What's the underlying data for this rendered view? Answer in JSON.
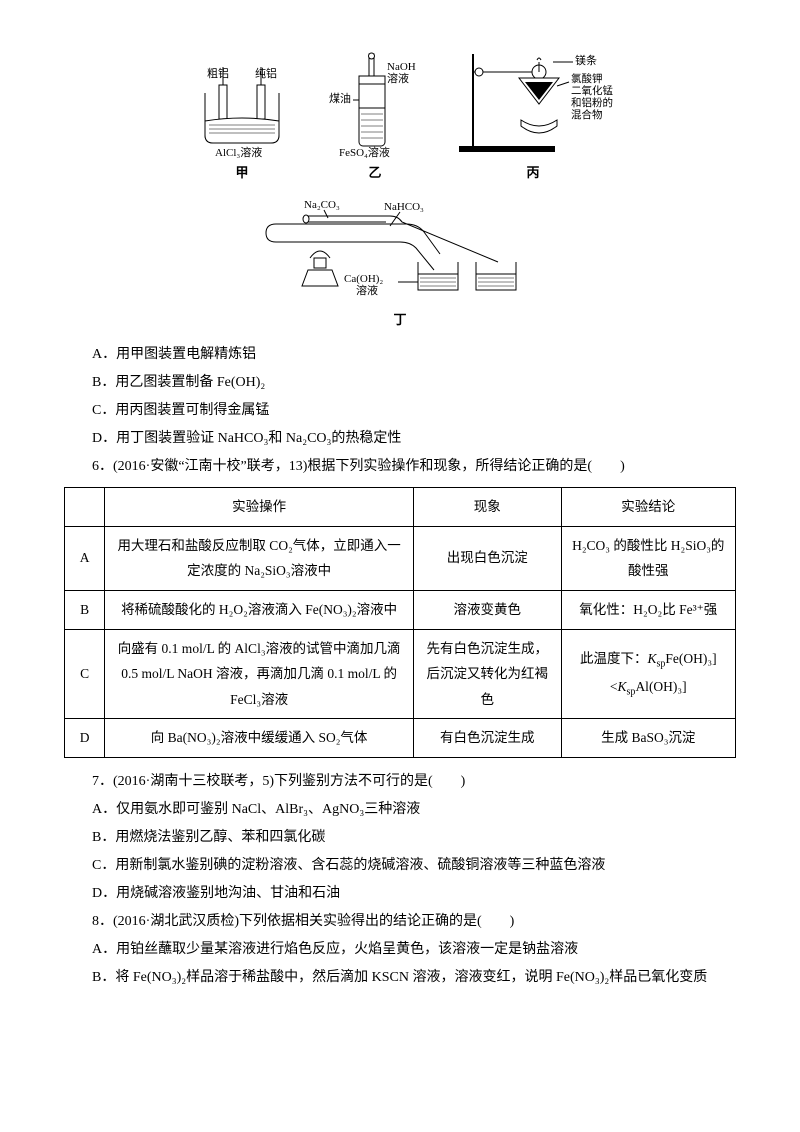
{
  "diagrams": {
    "jia": {
      "left": "粗铝",
      "right": "纯铝",
      "bottom": "AlCl₃溶液",
      "label": "甲"
    },
    "yi": {
      "top": "NaOH\n溶液",
      "mid": "煤油",
      "bottom": "FeSO₄溶液",
      "label": "乙"
    },
    "bing": {
      "a": "镁条",
      "b": "氯酸钾\n二氧化锰\n和铝粉的\n混合物",
      "label": "丙"
    },
    "ding": {
      "inner": "Na₂CO₃",
      "outer": "NaHCO₃",
      "sol": "Ca(OH)₂\n溶液",
      "label": "丁"
    }
  },
  "q5": {
    "A": "A．用甲图装置电解精炼铝",
    "B": "B．用乙图装置制备 Fe(OH)₂",
    "C": "C．用丙图装置可制得金属锰",
    "D": "D．用丁图装置验证 NaHCO₃和 Na₂CO₃的热稳定性"
  },
  "q6": {
    "stem": "6．(2016·安徽“江南十校”联考，13)根据下列实验操作和现象，所得结论正确的是(　　)",
    "headers": {
      "op": "实验操作",
      "ph": "现象",
      "res": "实验结论"
    },
    "rows": {
      "A": {
        "op": "用大理石和盐酸反应制取 CO₂气体，立即通入一定浓度的 Na₂SiO₃溶液中",
        "ph": "出现白色沉淀",
        "res": "H₂CO₃ 的酸性比 H₂SiO₃的酸性强"
      },
      "B": {
        "op": "将稀硫酸酸化的 H₂O₂溶液滴入 Fe(NO₃)₂溶液中",
        "ph": "溶液变黄色",
        "res": "氧化性：H₂O₂比 Fe³⁺强"
      },
      "C": {
        "op": "向盛有 0.1 mol/L 的 AlCl₃溶液的试管中滴加几滴 0.5 mol/L NaOH 溶液，再滴加几滴 0.1 mol/L 的 FeCl₃溶液",
        "ph": "先有白色沉淀生成，后沉淀又转化为红褐色",
        "res_html": "此温度下：<span class='ital'>K</span><sub>sp</sub>Fe(OH)₃]<br><<span class='ital'>K</span><sub>sp</sub>Al(OH)₃]"
      },
      "D": {
        "op": "向 Ba(NO₃)₂溶液中缓缓通入 SO₂气体",
        "ph": "有白色沉淀生成",
        "res": "生成 BaSO₃沉淀"
      }
    }
  },
  "q7": {
    "stem": "7．(2016·湖南十三校联考，5)下列鉴别方法不可行的是(　　)",
    "A": "A．仅用氨水即可鉴别 NaCl、AlBr₃、AgNO₃三种溶液",
    "B": "B．用燃烧法鉴别乙醇、苯和四氯化碳",
    "C": "C．用新制氯水鉴别碘的淀粉溶液、含石蕊的烧碱溶液、硫酸铜溶液等三种蓝色溶液",
    "D": "D．用烧碱溶液鉴别地沟油、甘油和石油"
  },
  "q8": {
    "stem": "8．(2016·湖北武汉质检)下列依据相关实验得出的结论正确的是(　　)",
    "A": "A．用铂丝蘸取少量某溶液进行焰色反应，火焰呈黄色，该溶液一定是钠盐溶液",
    "B": "B．将 Fe(NO₃)₂样品溶于稀盐酸中，然后滴加 KSCN 溶液，溶液变红，说明 Fe(NO₃)₂样品已氧化变质"
  }
}
